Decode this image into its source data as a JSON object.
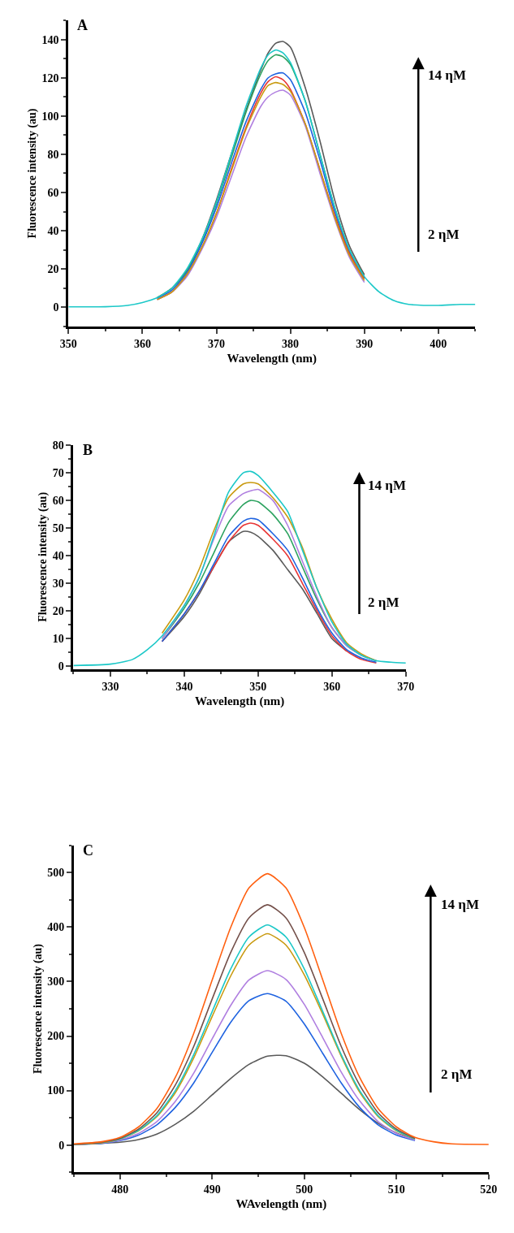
{
  "chart_data": [
    {
      "type": "line",
      "title": "A",
      "xlabel": "Wavelength (nm)",
      "ylabel": "Fluorescence intensity (au)",
      "annotations": [
        "14 ηM",
        "2 ηM"
      ],
      "xlim": [
        350,
        405
      ],
      "xticks": [
        350,
        360,
        370,
        380,
        390,
        400
      ],
      "ylim": [
        -10,
        150
      ],
      "yticks": [
        0,
        20,
        40,
        60,
        80,
        100,
        120,
        140
      ],
      "x": [
        350,
        355,
        358,
        360,
        362,
        364,
        366,
        368,
        370,
        372,
        374,
        376,
        377,
        378,
        379,
        380,
        382,
        384,
        386,
        388,
        390,
        392,
        394,
        396,
        398,
        400,
        403,
        405
      ],
      "series": [
        {
          "color": "#5a5a5a",
          "values": [
            null,
            null,
            null,
            null,
            5,
            10,
            19,
            35,
            56,
            80,
            103,
            124,
            133,
            138,
            139,
            136,
            115,
            87,
            56,
            32,
            17,
            null,
            null,
            null,
            null,
            null,
            null,
            null
          ]
        },
        {
          "color": "#2ca25f",
          "values": [
            null,
            null,
            null,
            null,
            5,
            10,
            19,
            34,
            54,
            78,
            102,
            122,
            129,
            132,
            131,
            127,
            108,
            80,
            52,
            30,
            16,
            null,
            null,
            null,
            null,
            null,
            null,
            null
          ]
        },
        {
          "color": "#1f63e0",
          "values": [
            null,
            null,
            null,
            null,
            4.5,
            9,
            18,
            33,
            52,
            75,
            97,
            114,
            120,
            122,
            122.5,
            119,
            102,
            77,
            50,
            29,
            15,
            null,
            null,
            null,
            null,
            null,
            null,
            null
          ]
        },
        {
          "color": "#e83535",
          "values": [
            null,
            null,
            null,
            null,
            4,
            8,
            17,
            31,
            49,
            72,
            94,
            112,
            118,
            120.5,
            119,
            114,
            96,
            72,
            48,
            28,
            15,
            null,
            null,
            null,
            null,
            null,
            null,
            null
          ]
        },
        {
          "color": "#b07fe0",
          "values": [
            null,
            null,
            null,
            null,
            4,
            8,
            16,
            30,
            47,
            68,
            89,
            105,
            110,
            112.5,
            113.5,
            111,
            95,
            70,
            46,
            26,
            13,
            null,
            null,
            null,
            null,
            null,
            null,
            null
          ]
        },
        {
          "color": "#c99a10",
          "values": [
            null,
            null,
            null,
            null,
            4,
            8,
            17,
            31,
            49,
            71,
            93,
            110,
            116,
            117.5,
            116.5,
            113,
            96,
            72,
            47,
            27,
            14,
            null,
            null,
            null,
            null,
            null,
            null,
            null
          ]
        },
        {
          "color": "#1cc8c8",
          "values": [
            0.2,
            0.3,
            1,
            2.5,
            5,
            10,
            20,
            35,
            55,
            80,
            105,
            125,
            132,
            134.5,
            133,
            128,
            108,
            80,
            52,
            30,
            16,
            8,
            3.5,
            1.5,
            1,
            1,
            1.5,
            1.5
          ]
        }
      ]
    },
    {
      "type": "line",
      "title": "B",
      "xlabel": "Wavelength (nm)",
      "ylabel": "Fluorescence intensity (au)",
      "annotations": [
        "14 ηM",
        "2 ηM"
      ],
      "xlim": [
        325,
        370
      ],
      "xticks": [
        330,
        340,
        350,
        360,
        370
      ],
      "ylim": [
        -1,
        80
      ],
      "yticks": [
        0,
        10,
        20,
        30,
        40,
        50,
        60,
        70,
        80
      ],
      "x": [
        325,
        330,
        333,
        335,
        337,
        340,
        342,
        344,
        346,
        348,
        349,
        350,
        352,
        354,
        356,
        358,
        360,
        362,
        364,
        366,
        368,
        370
      ],
      "series": [
        {
          "color": "#5a5a5a",
          "values": [
            null,
            null,
            null,
            null,
            9,
            18,
            26,
            36,
            45,
            48.8,
            48.5,
            47,
            42,
            35,
            28,
            19,
            10,
            5.5,
            null,
            null,
            null,
            null
          ]
        },
        {
          "color": "#e83535",
          "values": [
            null,
            null,
            null,
            null,
            9,
            19,
            27,
            36,
            45,
            51,
            51.8,
            51,
            46,
            40,
            30,
            20,
            11,
            5.5,
            2.5,
            1.2,
            null,
            null
          ]
        },
        {
          "color": "#1f63e0",
          "values": [
            null,
            null,
            null,
            null,
            9,
            19,
            27,
            37,
            47,
            52.5,
            53.5,
            53,
            48,
            42,
            32,
            21,
            12,
            6,
            3,
            1.5,
            null,
            null
          ]
        },
        {
          "color": "#2ca25f",
          "values": [
            null,
            null,
            null,
            null,
            10,
            21,
            30,
            41,
            52,
            58.5,
            60,
            59.5,
            55,
            48,
            36,
            24,
            14,
            7.5,
            4,
            2,
            null,
            null
          ]
        },
        {
          "color": "#b07fe0",
          "values": [
            null,
            null,
            null,
            null,
            10,
            22,
            32,
            46,
            58,
            62.5,
            63.5,
            64,
            60,
            51,
            38,
            25,
            14,
            7.5,
            4,
            2,
            null,
            null
          ]
        },
        {
          "color": "#c99a10",
          "values": [
            null,
            null,
            null,
            null,
            12,
            24,
            35,
            49,
            61,
            66,
            66.5,
            66,
            61,
            54,
            43,
            28,
            17,
            8.5,
            4.5,
            2,
            null,
            null
          ]
        },
        {
          "color": "#1cc8c8",
          "values": [
            0.3,
            0.8,
            2.5,
            6,
            11,
            22,
            32,
            47,
            63,
            70,
            70.5,
            69,
            63,
            56,
            42,
            28,
            16,
            8,
            4,
            2,
            1.5,
            1.2
          ]
        }
      ]
    },
    {
      "type": "line",
      "title": "C",
      "xlabel": "WAvelength (nm)",
      "ylabel": "Fluorescence intensity (au)",
      "annotations": [
        "14 ηM",
        "2 ηM"
      ],
      "xlim": [
        475,
        520
      ],
      "xticks": [
        480,
        490,
        500,
        510,
        520
      ],
      "ylim": [
        -50,
        550
      ],
      "yticks": [
        0,
        100,
        200,
        300,
        400,
        500
      ],
      "x": [
        475,
        478,
        480,
        482,
        484,
        486,
        488,
        490,
        492,
        494,
        496,
        498,
        500,
        502,
        504,
        506,
        508,
        510,
        512,
        514,
        516,
        520
      ],
      "series": [
        {
          "color": "#5a5a5a",
          "values": [
            1,
            3,
            5,
            10,
            20,
            38,
            62,
            92,
            122,
            148,
            163,
            164,
            150,
            125,
            95,
            65,
            40,
            22,
            10,
            null,
            null,
            null
          ]
        },
        {
          "color": "#1f63e0",
          "values": [
            1,
            3,
            8,
            18,
            37,
            69,
            114,
            170,
            225,
            265,
            278,
            264,
            222,
            168,
            114,
            69,
            37,
            18,
            8,
            null,
            null,
            null
          ]
        },
        {
          "color": "#b07fe0",
          "values": [
            1,
            4,
            9,
            21,
            43,
            80,
            132,
            195,
            256,
            303,
            320,
            304,
            258,
            197,
            134,
            81,
            43,
            21,
            9,
            null,
            null,
            null
          ]
        },
        {
          "color": "#c99a10",
          "values": [
            1,
            4,
            11,
            26,
            52,
            96,
            160,
            236,
            310,
            367,
            388,
            367,
            312,
            240,
            163,
            97,
            52,
            26,
            11,
            null,
            null,
            null
          ]
        },
        {
          "color": "#1cc8c8",
          "values": [
            1,
            5,
            11,
            27,
            54,
            100,
            166,
            245,
            323,
            382,
            404,
            382,
            323,
            245,
            166,
            100,
            54,
            27,
            11,
            null,
            null,
            null
          ]
        },
        {
          "color": "#74504a",
          "values": [
            1,
            5,
            12,
            29,
            59,
            110,
            181,
            268,
            353,
            417,
            441,
            417,
            353,
            268,
            181,
            110,
            59,
            29,
            12,
            null,
            null,
            null
          ]
        },
        {
          "color": "#ff6010",
          "values": [
            2,
            6,
            14,
            33,
            67,
            124,
            205,
            303,
            399,
            472,
            498,
            472,
            399,
            303,
            205,
            124,
            67,
            33,
            14,
            6,
            2,
            1
          ]
        }
      ]
    }
  ]
}
